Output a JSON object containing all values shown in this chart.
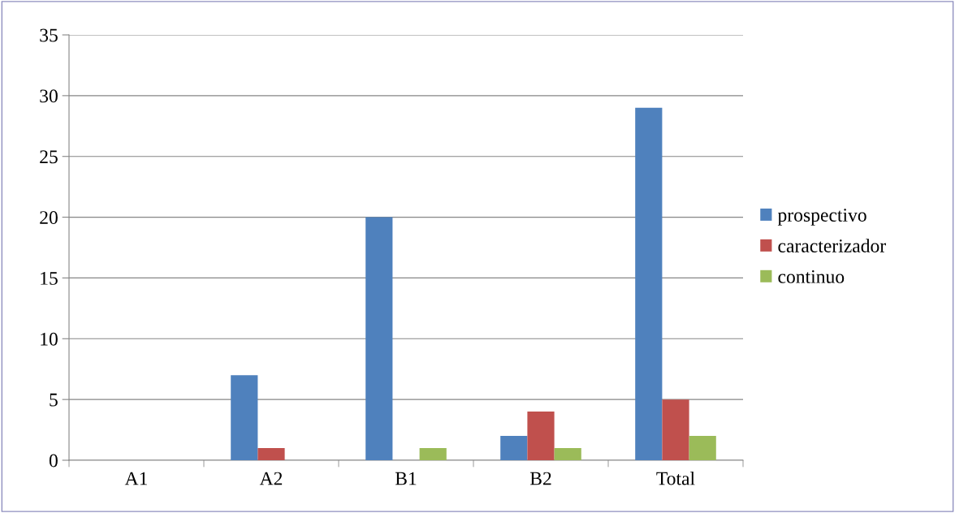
{
  "chart_data": {
    "type": "bar",
    "categories": [
      "A1",
      "A2",
      "B1",
      "B2",
      "Total"
    ],
    "series": [
      {
        "name": "prospectivo",
        "color": "#4f81bd",
        "values": [
          0,
          7,
          20,
          2,
          29
        ]
      },
      {
        "name": "caracterizador",
        "color": "#c0504d",
        "values": [
          0,
          1,
          0,
          4,
          5
        ]
      },
      {
        "name": "continuo",
        "color": "#9bbb59",
        "values": [
          0,
          0,
          1,
          1,
          2
        ]
      }
    ],
    "ylim": [
      0,
      35
    ],
    "yticks": [
      0,
      5,
      10,
      15,
      20,
      25,
      30,
      35
    ],
    "grid": "y",
    "legend": "right"
  }
}
